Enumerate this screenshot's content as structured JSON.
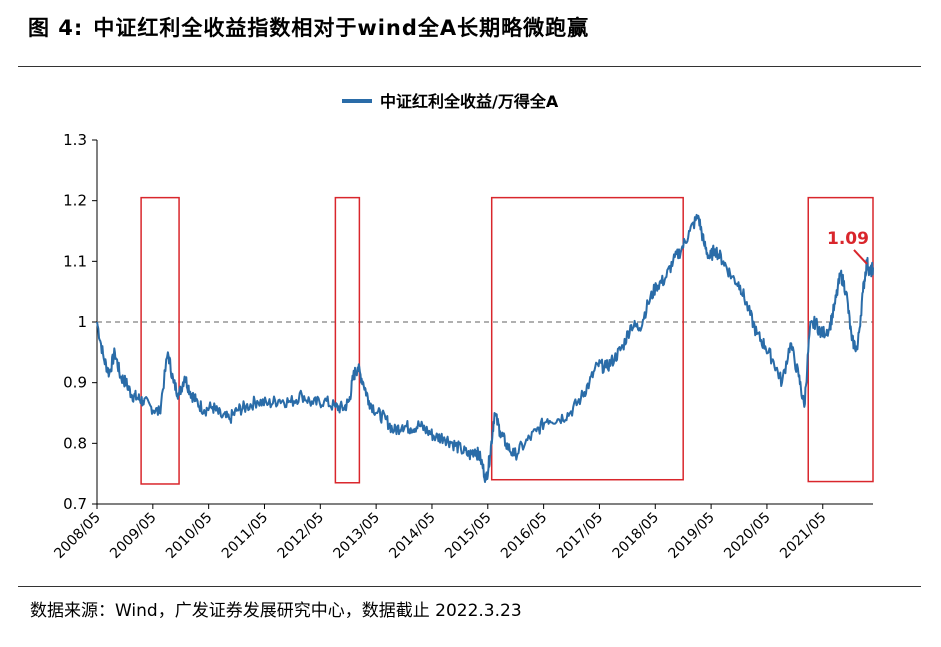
{
  "header": {
    "figure_label": "图  4:",
    "title": "中证红利全收益指数相对于wind全A长期略微跑赢"
  },
  "footer": {
    "source": "数据来源：Wind，广发证券发展研究中心，数据截止 2022.3.23"
  },
  "colors": {
    "series": "#2a6ca8",
    "box": "#d9262c",
    "annotation": "#d9262c",
    "reference_line": "#808080"
  },
  "chart_data": {
    "type": "line",
    "title": "",
    "legend": "中证红利全收益/万得全A",
    "legend_position": "top-center",
    "xlabel": "",
    "ylabel": "",
    "ylim": [
      0.7,
      1.3
    ],
    "yticks": [
      0.7,
      0.8,
      0.9,
      1,
      1.1,
      1.2,
      1.3
    ],
    "ytick_labels": [
      "0.7",
      "0.8",
      "0.9",
      "1",
      "1.1",
      "1.2",
      "1.3"
    ],
    "xlim": [
      2008.33,
      2022.23
    ],
    "xticks": [
      2008.33,
      2009.33,
      2010.33,
      2011.33,
      2012.33,
      2013.33,
      2014.33,
      2015.33,
      2016.33,
      2017.33,
      2018.33,
      2019.33,
      2020.33,
      2021.33
    ],
    "xtick_labels": [
      "2008/05",
      "2009/05",
      "2010/05",
      "2011/05",
      "2012/05",
      "2013/05",
      "2014/05",
      "2015/05",
      "2016/05",
      "2017/05",
      "2018/05",
      "2019/05",
      "2020/05",
      "2021/05"
    ],
    "reference_line": {
      "y": 1.0,
      "style": "dashed"
    },
    "series": [
      {
        "name": "中证红利全收益/万得全A",
        "x": [
          2008.33,
          2008.45,
          2008.55,
          2008.65,
          2008.75,
          2008.85,
          2008.95,
          2009.05,
          2009.15,
          2009.3,
          2009.45,
          2009.6,
          2009.7,
          2009.8,
          2009.9,
          2010.0,
          2010.1,
          2010.25,
          2010.4,
          2010.55,
          2010.7,
          2010.85,
          2011.0,
          2011.2,
          2011.4,
          2011.6,
          2011.8,
          2012.0,
          2012.2,
          2012.4,
          2012.6,
          2012.75,
          2012.85,
          2012.92,
          2013.0,
          2013.1,
          2013.2,
          2013.35,
          2013.5,
          2013.65,
          2013.8,
          2013.95,
          2014.1,
          2014.25,
          2014.4,
          2014.55,
          2014.7,
          2014.85,
          2015.0,
          2015.1,
          2015.2,
          2015.3,
          2015.37,
          2015.45,
          2015.55,
          2015.65,
          2015.8,
          2016.0,
          2016.2,
          2016.4,
          2016.6,
          2016.8,
          2017.0,
          2017.15,
          2017.3,
          2017.45,
          2017.6,
          2017.75,
          2017.9,
          2018.05,
          2018.2,
          2018.35,
          2018.5,
          2018.65,
          2018.8,
          2018.95,
          2019.1,
          2019.2,
          2019.3,
          2019.4,
          2019.55,
          2019.7,
          2019.85,
          2020.0,
          2020.15,
          2020.3,
          2020.45,
          2020.6,
          2020.75,
          2020.9,
          2021.0,
          2021.1,
          2021.2,
          2021.3,
          2021.45,
          2021.55,
          2021.65,
          2021.75,
          2021.85,
          2021.95,
          2022.05,
          2022.12,
          2022.18,
          2022.23
        ],
        "values": [
          1.0,
          0.94,
          0.915,
          0.95,
          0.91,
          0.9,
          0.88,
          0.875,
          0.87,
          0.86,
          0.85,
          0.95,
          0.9,
          0.88,
          0.91,
          0.885,
          0.87,
          0.855,
          0.86,
          0.845,
          0.84,
          0.855,
          0.86,
          0.87,
          0.865,
          0.872,
          0.868,
          0.88,
          0.865,
          0.87,
          0.86,
          0.858,
          0.87,
          0.91,
          0.925,
          0.9,
          0.87,
          0.85,
          0.84,
          0.82,
          0.83,
          0.825,
          0.83,
          0.82,
          0.81,
          0.81,
          0.8,
          0.79,
          0.78,
          0.79,
          0.775,
          0.74,
          0.78,
          0.85,
          0.82,
          0.8,
          0.78,
          0.8,
          0.82,
          0.84,
          0.84,
          0.85,
          0.875,
          0.9,
          0.93,
          0.925,
          0.94,
          0.96,
          0.995,
          0.99,
          1.03,
          1.06,
          1.07,
          1.1,
          1.12,
          1.15,
          1.175,
          1.13,
          1.105,
          1.12,
          1.1,
          1.075,
          1.06,
          1.02,
          0.98,
          0.96,
          0.935,
          0.9,
          0.965,
          0.91,
          0.86,
          0.99,
          1.0,
          0.98,
          0.99,
          1.03,
          1.08,
          1.05,
          0.97,
          0.955,
          1.05,
          1.1,
          1.08,
          1.09
        ]
      }
    ],
    "highlight_boxes": [
      {
        "x_start": 2009.12,
        "x_end": 2009.8,
        "y_low": 0.733,
        "y_high": 1.205
      },
      {
        "x_start": 2012.6,
        "x_end": 2013.03,
        "y_low": 0.735,
        "y_high": 1.205
      },
      {
        "x_start": 2015.4,
        "x_end": 2018.83,
        "y_low": 0.74,
        "y_high": 1.205
      },
      {
        "x_start": 2021.07,
        "x_end": 2022.23,
        "y_low": 0.737,
        "y_high": 1.205
      }
    ],
    "annotations": [
      {
        "text": "1.09",
        "x": 2022.14,
        "y": 1.094
      }
    ]
  }
}
